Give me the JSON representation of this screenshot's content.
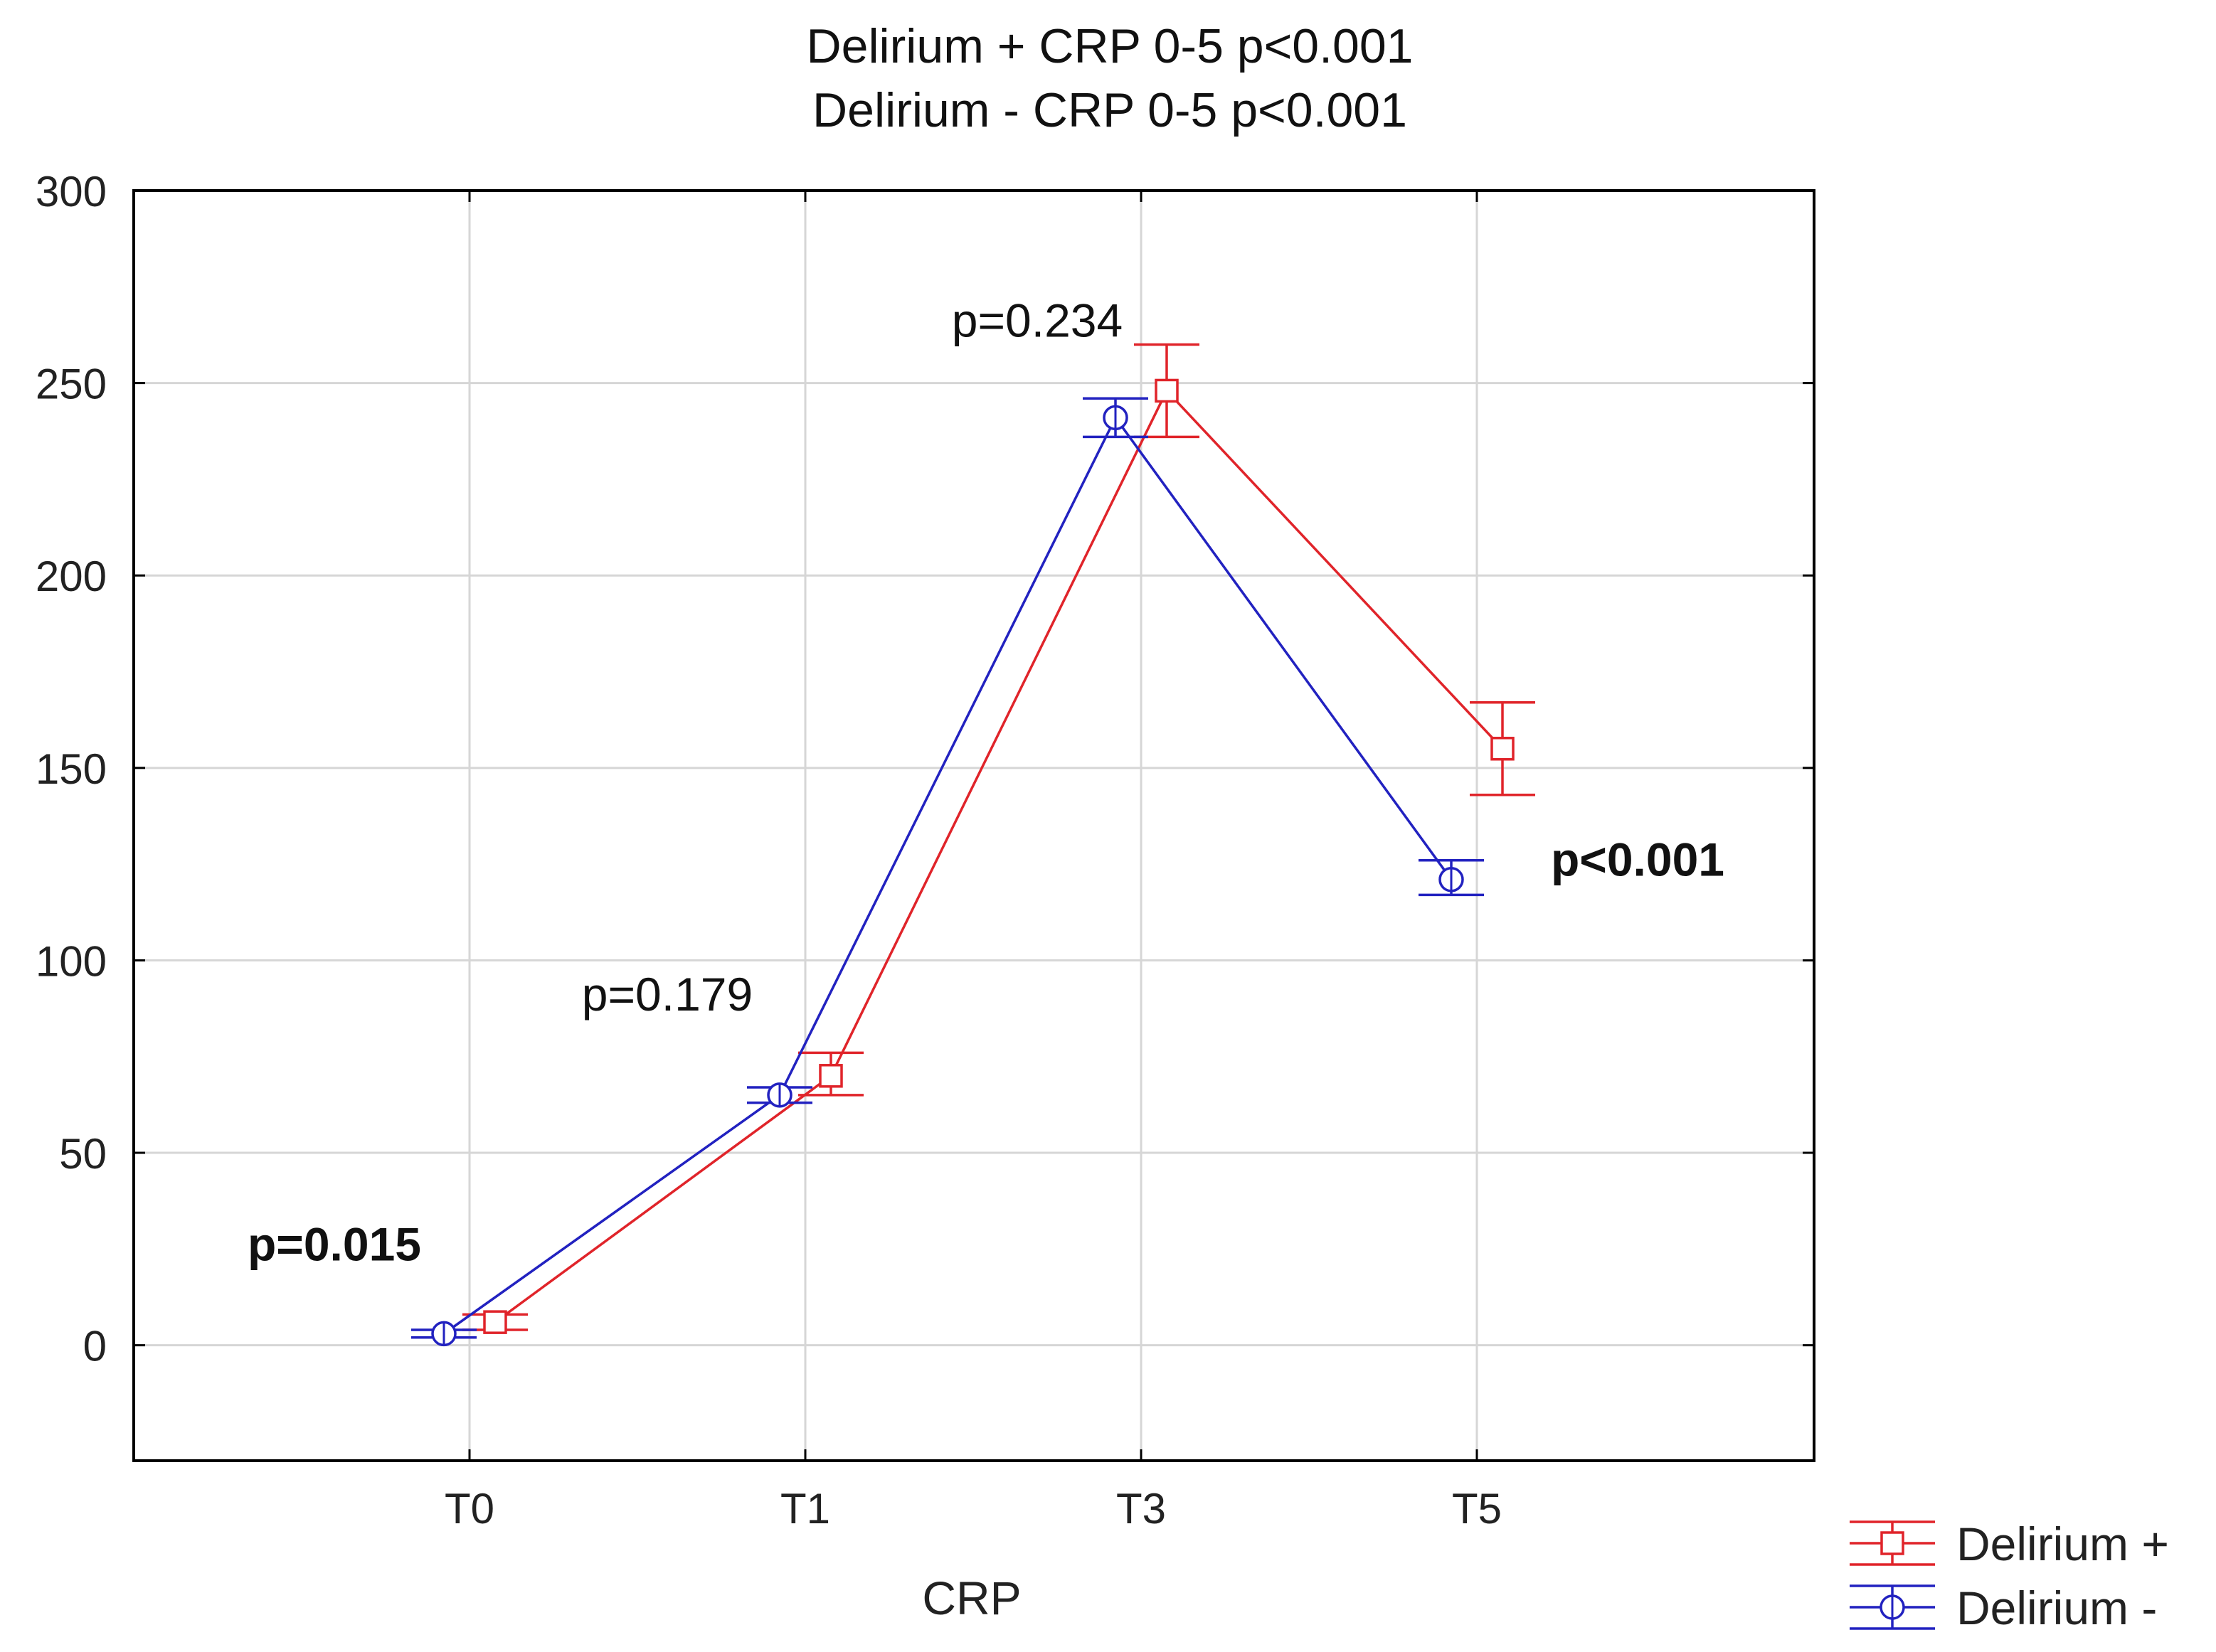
{
  "chart_data": {
    "type": "line",
    "title": [
      "Delirium + CRP 0-5 p<0.001",
      "Delirium - CRP 0-5 p<0.001"
    ],
    "xlabel": "CRP",
    "ylabel": "",
    "categories": [
      "T0",
      "T1",
      "T3",
      "T5"
    ],
    "ylim": [
      -30,
      300
    ],
    "yticks": [
      0,
      50,
      100,
      150,
      200,
      250,
      300
    ],
    "grid": true,
    "legend_position": "bottom-right",
    "series": [
      {
        "name": "Delirium +",
        "color": "#e0242a",
        "marker": "square",
        "values": [
          6,
          70,
          248,
          155
        ],
        "error_low": [
          4,
          65,
          236,
          143
        ],
        "error_high": [
          8,
          76,
          260,
          167
        ]
      },
      {
        "name": "Delirium -",
        "color": "#2222c0",
        "marker": "circle-plus",
        "values": [
          3,
          65,
          241,
          121
        ],
        "error_low": [
          2,
          63,
          236,
          117
        ],
        "error_high": [
          4,
          67,
          246,
          126
        ]
      }
    ],
    "annotations": [
      {
        "text": "p=0.015",
        "category": "T0",
        "y": 22,
        "bold": true
      },
      {
        "text": "p=0.179",
        "category": "T1",
        "y": 87,
        "bold": false
      },
      {
        "text": "p=0.234",
        "category": "T3",
        "y": 262,
        "bold": false
      },
      {
        "text": "p<0.001",
        "category": "T5",
        "y": 122,
        "bold": true
      }
    ]
  }
}
